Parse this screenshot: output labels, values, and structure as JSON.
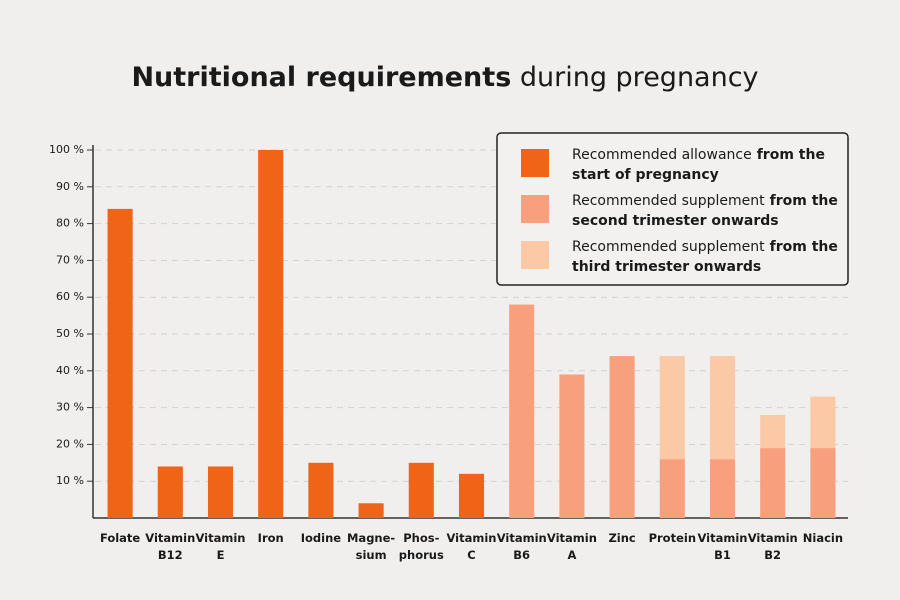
{
  "chart_data": {
    "type": "stacked_bar",
    "title_bold": "Nutritional requirements",
    "title": "during pregnancy",
    "categories": [
      "Folate",
      "Vitamin\nB12",
      "Vitamin\nE",
      "Iron",
      "Iodine",
      "Magne-\nsium",
      "Phos-\nphorus",
      "Vitamin\nC",
      "Vitamin\nB6",
      "Vitamin\nA",
      "Zinc",
      "Protein",
      "Vitamin\nB1",
      "Vitamin\nB2",
      "Niacin"
    ],
    "series": [
      {
        "name": "Recommended allowance",
        "name_bold": "from the start of pregnancy",
        "color": "#f06418",
        "values": [
          84,
          14,
          14,
          100,
          15,
          4,
          15,
          12,
          null,
          null,
          null,
          null,
          null,
          null,
          null
        ]
      },
      {
        "name": "Recommended supplement",
        "name_bold": "from the second trimester onwards",
        "color": "#f8a07e",
        "values": [
          null,
          null,
          null,
          null,
          null,
          null,
          null,
          null,
          58,
          39,
          44,
          16,
          16,
          19,
          19
        ]
      },
      {
        "name": "Recommended supplement",
        "name_bold": "from the third trimester onwards",
        "color": "#fbc9a6",
        "values": [
          null,
          null,
          null,
          null,
          null,
          null,
          null,
          null,
          null,
          null,
          null,
          28,
          28,
          9,
          14
        ]
      }
    ],
    "ylim": [
      0,
      100
    ],
    "yticks": [
      {
        "value": 10,
        "label": "10 %"
      },
      {
        "value": 20,
        "label": "20 %"
      },
      {
        "value": 30,
        "label": "30 %"
      },
      {
        "value": 40,
        "label": "40 %"
      },
      {
        "value": 50,
        "label": "50 %"
      },
      {
        "value": 60,
        "label": "60 %"
      },
      {
        "value": 70,
        "label": "70 %"
      },
      {
        "value": 80,
        "label": "80 %"
      },
      {
        "value": 90,
        "label": "90 %"
      },
      {
        "value": 100,
        "label": "100 %"
      }
    ],
    "grid": true,
    "legend": "top-right"
  }
}
